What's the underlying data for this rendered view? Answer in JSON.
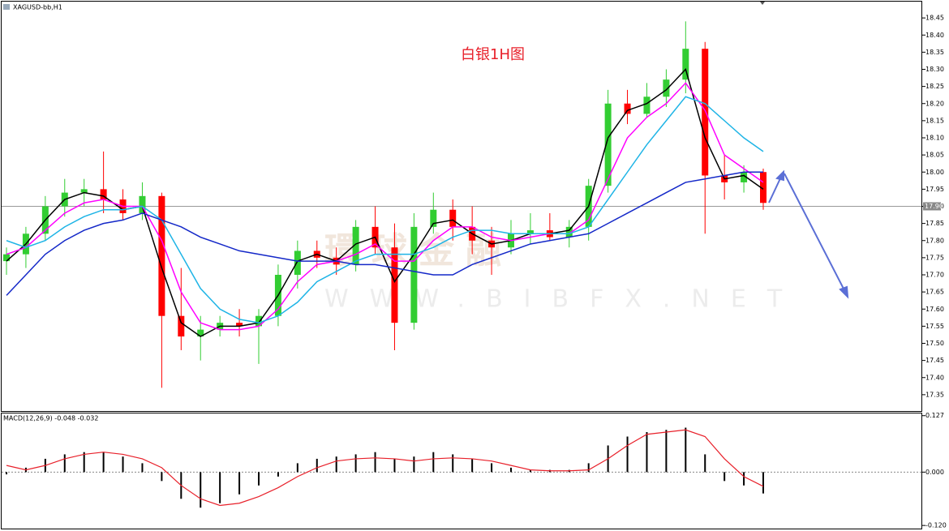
{
  "chart_data": [
    {
      "type": "candlestick",
      "title": "XAGUSD-bb,H1",
      "annotation": "白银1H图",
      "watermark": [
        "環球金融",
        "WWW.BIBFX.NET"
      ],
      "up_color": "#32cd32",
      "down_color": "#ff0000",
      "open": [
        17.74,
        17.76,
        17.82,
        17.9,
        17.94,
        17.95,
        17.92,
        17.88,
        17.93,
        17.58,
        17.52,
        17.54,
        17.56,
        17.55,
        17.58,
        17.7,
        17.77,
        17.75,
        17.73,
        17.84,
        17.78,
        17.56,
        17.84,
        17.89,
        17.84,
        17.8,
        17.78,
        17.82,
        17.83,
        17.81,
        17.84,
        17.96,
        18.2,
        18.17,
        18.22,
        18.27,
        18.36,
        17.99,
        17.97,
        18.0
      ],
      "high": [
        17.78,
        17.84,
        17.93,
        17.98,
        17.98,
        18.06,
        17.95,
        17.97,
        17.94,
        17.72,
        17.58,
        17.58,
        17.6,
        17.6,
        17.73,
        17.8,
        17.8,
        17.78,
        17.86,
        17.9,
        17.85,
        17.88,
        17.94,
        17.92,
        17.9,
        17.84,
        17.86,
        17.88,
        17.88,
        17.86,
        17.98,
        18.24,
        18.24,
        18.26,
        18.3,
        18.44,
        18.38,
        18.05,
        18.02,
        18.01
      ],
      "low": [
        17.7,
        17.72,
        17.8,
        17.87,
        17.9,
        17.88,
        17.86,
        17.86,
        17.37,
        17.48,
        17.45,
        17.52,
        17.52,
        17.44,
        17.55,
        17.66,
        17.72,
        17.7,
        17.71,
        17.76,
        17.48,
        17.54,
        17.82,
        17.8,
        17.76,
        17.7,
        17.76,
        17.79,
        17.8,
        17.78,
        17.8,
        17.94,
        18.14,
        18.16,
        18.19,
        18.23,
        17.82,
        17.92,
        17.94,
        17.89
      ],
      "close": [
        17.76,
        17.82,
        17.9,
        17.94,
        17.95,
        17.92,
        17.88,
        17.93,
        17.58,
        17.52,
        17.54,
        17.56,
        17.55,
        17.58,
        17.7,
        17.77,
        17.75,
        17.73,
        17.84,
        17.78,
        17.56,
        17.84,
        17.89,
        17.84,
        17.8,
        17.78,
        17.82,
        17.83,
        17.81,
        17.84,
        17.96,
        18.2,
        18.17,
        18.22,
        18.27,
        18.36,
        17.99,
        17.97,
        18.0,
        17.91
      ],
      "lines": [
        {
          "color": "#000000",
          "values": [
            17.74,
            17.79,
            17.86,
            17.92,
            17.94,
            17.93,
            17.89,
            17.9,
            17.72,
            17.56,
            17.52,
            17.55,
            17.55,
            17.56,
            17.64,
            17.74,
            17.76,
            17.74,
            17.79,
            17.81,
            17.68,
            17.76,
            17.85,
            17.86,
            17.82,
            17.79,
            17.8,
            17.82,
            17.82,
            17.83,
            17.9,
            18.1,
            18.18,
            18.2,
            18.24,
            18.3,
            18.1,
            17.98,
            17.99,
            17.95
          ]
        },
        {
          "color": "#ff00ff",
          "values": [
            17.76,
            17.78,
            17.83,
            17.88,
            17.91,
            17.92,
            17.9,
            17.9,
            17.8,
            17.65,
            17.56,
            17.54,
            17.54,
            17.55,
            17.6,
            17.68,
            17.73,
            17.74,
            17.76,
            17.79,
            17.74,
            17.74,
            17.8,
            17.84,
            17.84,
            17.81,
            17.8,
            17.81,
            17.82,
            17.82,
            17.86,
            17.98,
            18.1,
            18.16,
            18.2,
            18.26,
            18.18,
            18.05,
            18.01,
            17.97
          ]
        },
        {
          "color": "#1eb4e6",
          "values": [
            17.8,
            17.78,
            17.8,
            17.84,
            17.87,
            17.89,
            17.89,
            17.9,
            17.86,
            17.76,
            17.66,
            17.6,
            17.57,
            17.56,
            17.58,
            17.62,
            17.68,
            17.71,
            17.74,
            17.76,
            17.76,
            17.76,
            17.78,
            17.81,
            17.83,
            17.83,
            17.82,
            17.82,
            17.82,
            17.82,
            17.84,
            17.92,
            18.0,
            18.08,
            18.15,
            18.22,
            18.2,
            18.15,
            18.1,
            18.06
          ]
        },
        {
          "color": "#1428c8",
          "values": [
            17.64,
            17.7,
            17.76,
            17.8,
            17.83,
            17.85,
            17.86,
            17.88,
            17.86,
            17.84,
            17.81,
            17.79,
            17.77,
            17.76,
            17.75,
            17.74,
            17.74,
            17.74,
            17.73,
            17.73,
            17.72,
            17.71,
            17.7,
            17.7,
            17.73,
            17.75,
            17.77,
            17.79,
            17.8,
            17.81,
            17.82,
            17.85,
            17.88,
            17.91,
            17.94,
            17.97,
            17.98,
            17.99,
            18.0,
            18.0
          ]
        }
      ],
      "current_price": {
        "value": 17.9,
        "label": "17.90"
      },
      "ylim": [
        17.3,
        18.5
      ],
      "yticks": [
        18.45,
        {
          "value": 18.4,
          "label": "18.40"
        },
        18.35,
        {
          "value": 18.3,
          "label": "18.30"
        },
        18.25,
        {
          "value": 18.2,
          "label": "18.20"
        },
        18.15,
        {
          "value": 18.1,
          "label": "18.10"
        },
        18.05,
        {
          "value": 18,
          "label": "18.00"
        },
        17.95,
        {
          "value": 17.9,
          "label": "17.90"
        },
        17.85,
        {
          "value": 17.8,
          "label": "17.80"
        },
        17.75,
        {
          "value": 17.7,
          "label": "17.70"
        },
        17.65,
        {
          "value": 17.6,
          "label": "17.60"
        },
        17.55,
        {
          "value": 17.5,
          "label": "17.50"
        },
        17.45,
        {
          "value": 17.4,
          "label": "17.40"
        },
        17.35
      ]
    },
    {
      "type": "macd",
      "title": "MACD(12,26,9) -0.048 -0.032",
      "histogram": {
        "color": "#000000",
        "values": [
          -0.005,
          0.01,
          0.03,
          0.04,
          0.045,
          0.045,
          0.035,
          0.02,
          -0.02,
          -0.06,
          -0.08,
          -0.07,
          -0.05,
          -0.03,
          -0.01,
          0.02,
          0.03,
          0.035,
          0.04,
          0.045,
          0.03,
          0.035,
          0.045,
          0.04,
          0.03,
          0.02,
          0.01,
          0.005,
          0.005,
          0.005,
          0.02,
          0.06,
          0.08,
          0.09,
          0.095,
          0.1,
          0.04,
          -0.02,
          -0.03,
          -0.048
        ]
      },
      "signal": {
        "color": "#e8202a",
        "values": [
          0.015,
          0.005,
          0.015,
          0.03,
          0.04,
          0.045,
          0.04,
          0.03,
          0.01,
          -0.03,
          -0.06,
          -0.075,
          -0.07,
          -0.055,
          -0.035,
          -0.01,
          0.01,
          0.025,
          0.03,
          0.032,
          0.03,
          0.025,
          0.03,
          0.032,
          0.03,
          0.025,
          0.015,
          0.005,
          0.003,
          0.003,
          0.005,
          0.03,
          0.06,
          0.085,
          0.09,
          0.095,
          0.08,
          0.03,
          -0.01,
          -0.032
        ]
      },
      "ylim": [
        -0.127,
        0.132
      ],
      "yticks": [
        0.127,
        {
          "value": 0,
          "label": "0.000"
        },
        {
          "value": -0.12,
          "label": "-0.120"
        }
      ]
    }
  ]
}
